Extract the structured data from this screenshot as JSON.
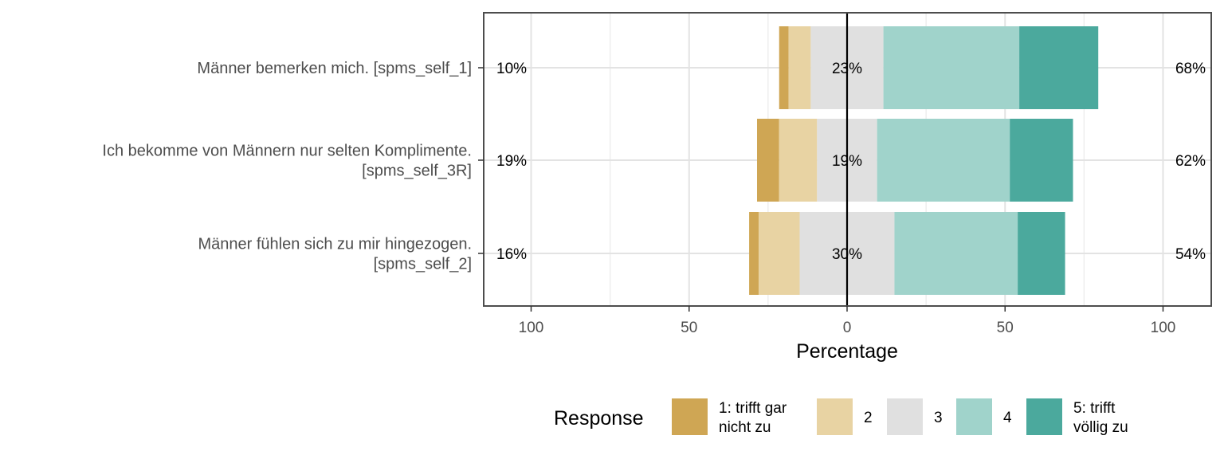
{
  "chart_data": {
    "type": "bar",
    "orientation": "horizontal",
    "stacked": "diverging",
    "xlabel": "Percentage",
    "xlim": [
      -100,
      100
    ],
    "x_ticks": [
      -100,
      -50,
      0,
      50,
      100
    ],
    "x_tick_labels": [
      "100",
      "50",
      "0",
      "50",
      "100"
    ],
    "grid": true,
    "legend": {
      "title": "Response",
      "position": "bottom",
      "labels": [
        "1: trifft gar\nnicht zu",
        "2",
        "3",
        "4",
        "5: trifft\nvöllig zu"
      ]
    },
    "colors": [
      "#CFA654",
      "#E8D3A3",
      "#E0E0E0",
      "#A0D3CB",
      "#4BA99D"
    ],
    "categories": [
      "Männer bemerken mich. [spms_self_1]",
      "Ich bekomme von Männern nur selten Komplimente.\n[spms_self_3R]",
      "Männer fühlen sich zu mir hingezogen.\n[spms_self_2]"
    ],
    "series": [
      {
        "name": "1: trifft gar nicht zu",
        "values": [
          3,
          7,
          3
        ]
      },
      {
        "name": "2",
        "values": [
          7,
          12,
          13
        ]
      },
      {
        "name": "3",
        "values": [
          23,
          19,
          30
        ]
      },
      {
        "name": "4",
        "values": [
          43,
          42,
          39
        ]
      },
      {
        "name": "5: trifft völlig zu",
        "values": [
          25,
          20,
          15
        ]
      }
    ],
    "left_labels": [
      "10%",
      "19%",
      "16%"
    ],
    "center_labels": [
      "23%",
      "19%",
      "30%"
    ],
    "right_labels": [
      "68%",
      "62%",
      "54%"
    ]
  }
}
